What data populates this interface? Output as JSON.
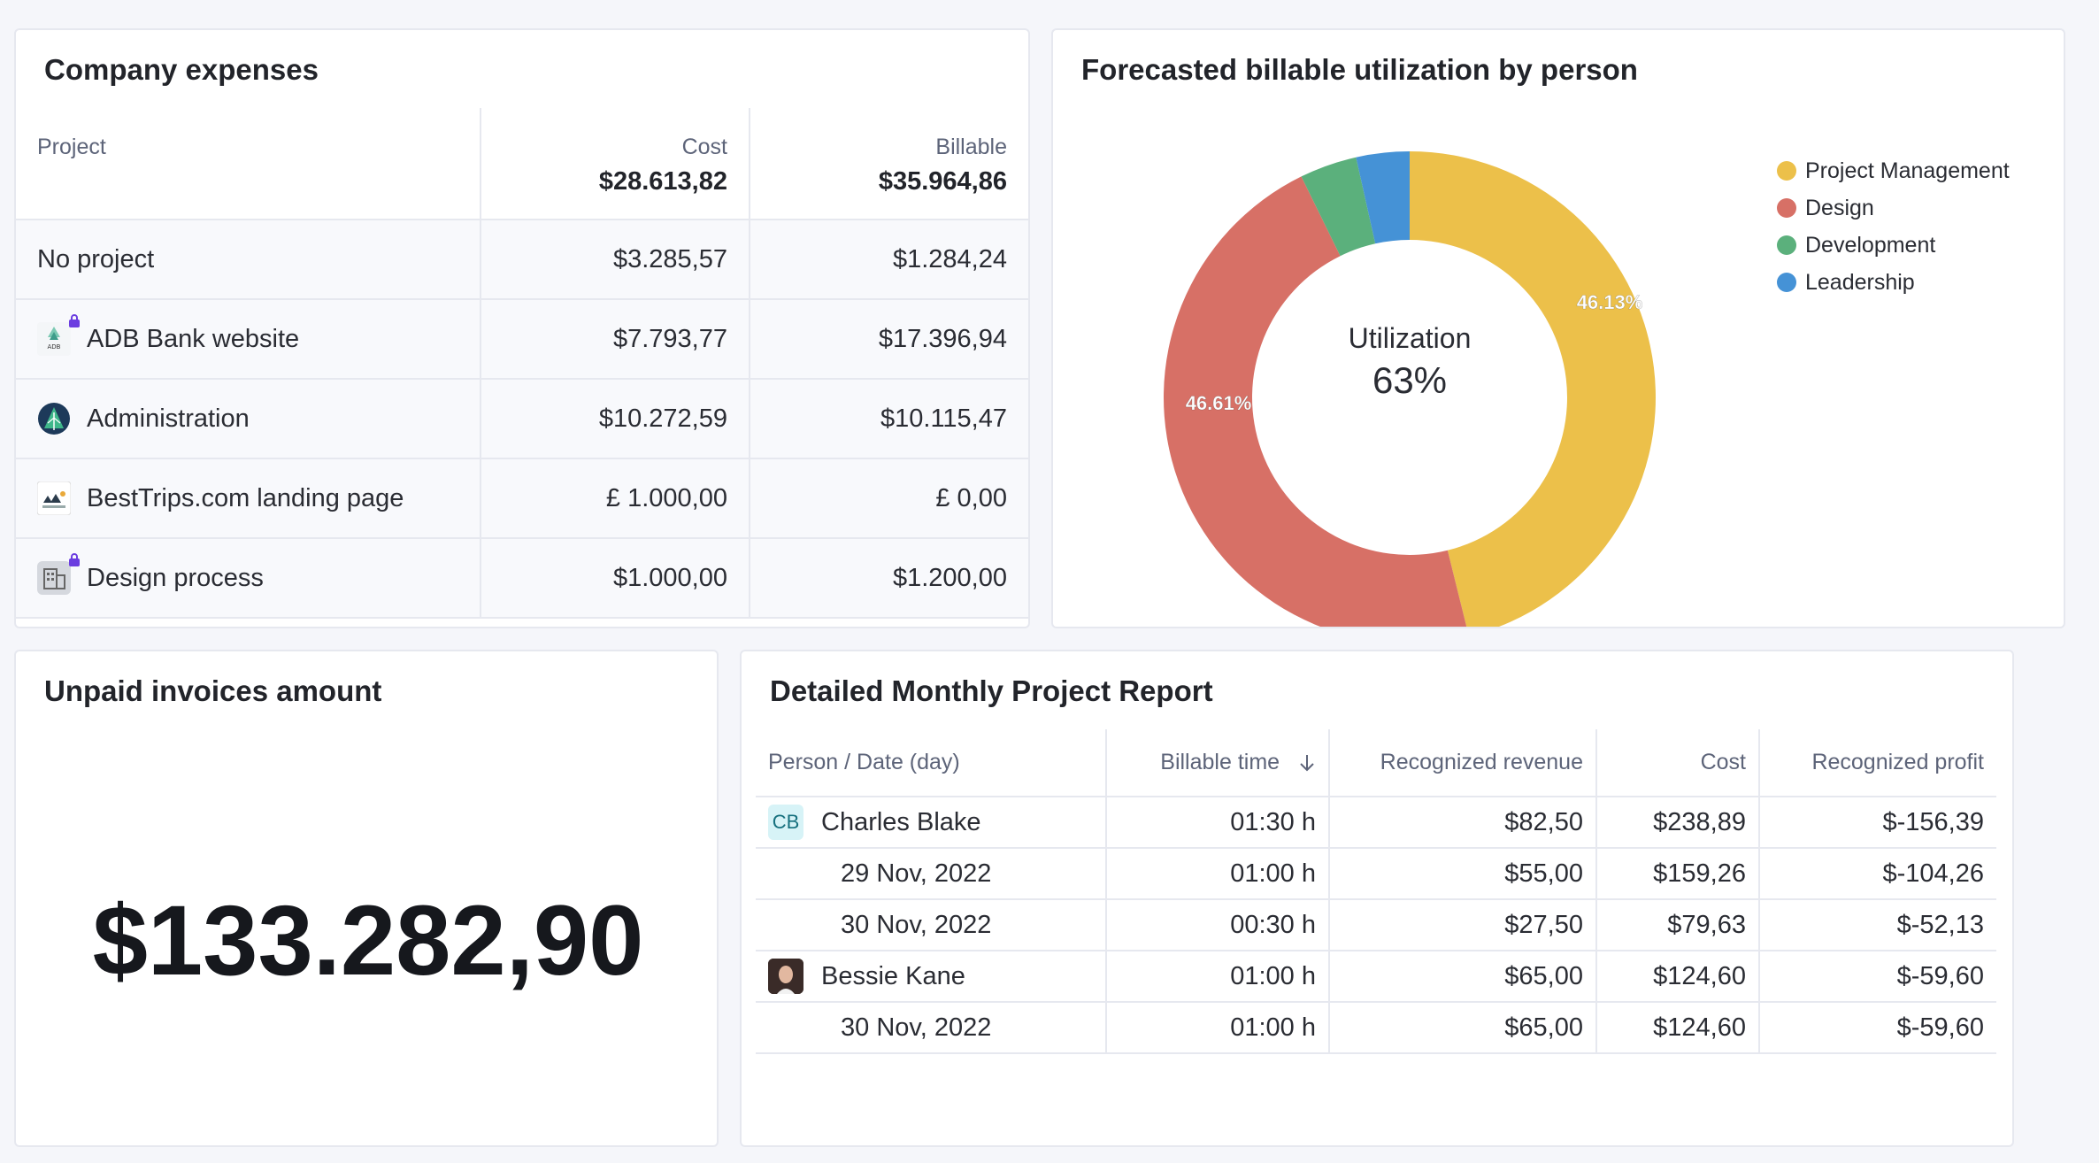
{
  "expenses": {
    "title": "Company expenses",
    "col_project": "Project",
    "col_cost": "Cost",
    "col_billable": "Billable",
    "total_cost": "$28.613,82",
    "total_billable": "$35.964,86",
    "rows": [
      {
        "name": "No project",
        "cost": "$3.285,57",
        "billable": "$1.284,24",
        "icon": "none",
        "locked": false
      },
      {
        "name": "ADB Bank website",
        "cost": "$7.793,77",
        "billable": "$17.396,94",
        "icon": "adb-logo-icon",
        "locked": true
      },
      {
        "name": "Administration",
        "cost": "$10.272,59",
        "billable": "$10.115,47",
        "icon": "admin-logo-icon",
        "locked": false
      },
      {
        "name": "BestTrips.com landing page",
        "cost": "£ 1.000,00",
        "billable": "£ 0,00",
        "icon": "besttrips-logo-icon",
        "locked": false
      },
      {
        "name": "Design process",
        "cost": "$1.000,00",
        "billable": "$1.200,00",
        "icon": "building-icon",
        "locked": true
      }
    ]
  },
  "utilization": {
    "title": "Forecasted billable utilization by person",
    "center_label": "Utilization",
    "center_value": "63%",
    "chart_data": {
      "type": "pie",
      "labels": [
        "Project Management",
        "Design",
        "Development",
        "Leadership"
      ],
      "values": [
        46.13,
        46.61,
        3.76,
        3.5
      ],
      "value_labels": [
        "46.13%",
        "46.61%",
        "",
        ""
      ],
      "colors": [
        "#ecc04a",
        "#d77066",
        "#5bb07c",
        "#4592d6"
      ],
      "legend_position": "top-right"
    }
  },
  "unpaid": {
    "title": "Unpaid invoices amount",
    "amount": "$133.282,90"
  },
  "report": {
    "title": "Detailed Monthly Project Report",
    "headers": [
      "Person / Date (day)",
      "Billable time",
      "Recognized revenue",
      "Cost",
      "Recognized profit"
    ],
    "rows": [
      {
        "type": "person",
        "badge": "CB",
        "name": "Charles Blake",
        "time": "01:30 h",
        "revenue": "$82,50",
        "cost": "$238,89",
        "profit": "$-156,39"
      },
      {
        "type": "date",
        "name": "29 Nov, 2022",
        "time": "01:00 h",
        "revenue": "$55,00",
        "cost": "$159,26",
        "profit": "$-104,26"
      },
      {
        "type": "date",
        "name": "30 Nov, 2022",
        "time": "00:30 h",
        "revenue": "$27,50",
        "cost": "$79,63",
        "profit": "$-52,13"
      },
      {
        "type": "person-avatar",
        "name": "Bessie Kane",
        "time": "01:00 h",
        "revenue": "$65,00",
        "cost": "$124,60",
        "profit": "$-59,60"
      },
      {
        "type": "date",
        "name": "30 Nov, 2022",
        "time": "01:00 h",
        "revenue": "$65,00",
        "cost": "$124,60",
        "profit": "$-59,60"
      }
    ]
  }
}
